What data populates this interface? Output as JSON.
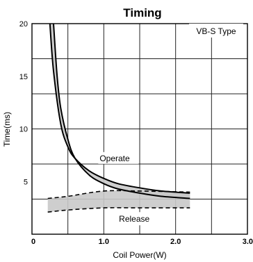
{
  "chart_data": {
    "type": "line",
    "title": "Timing",
    "xlabel": "Coil Power(W)",
    "ylabel": "Time(ms)",
    "xlim": [
      0,
      3.0
    ],
    "ylim": [
      0,
      20
    ],
    "x_ticks": [
      "0",
      "1.0",
      "2.0",
      "3.0"
    ],
    "y_ticks": [
      "20",
      "15",
      "10",
      "5"
    ],
    "grid": true,
    "type_label": "VB-S Type",
    "series": [
      {
        "name": "Operate",
        "band": true,
        "upper": [
          [
            0.25,
            20
          ],
          [
            0.3,
            15.5
          ],
          [
            0.4,
            10.5
          ],
          [
            0.5,
            8.3
          ],
          [
            0.6,
            7.2
          ],
          [
            0.8,
            6.0
          ],
          [
            1.0,
            5.3
          ],
          [
            1.2,
            4.8
          ],
          [
            1.5,
            4.4
          ],
          [
            1.8,
            4.1
          ],
          [
            2.2,
            3.9
          ]
        ],
        "lower": [
          [
            0.3,
            20
          ],
          [
            0.35,
            15
          ],
          [
            0.4,
            12
          ],
          [
            0.5,
            9.0
          ],
          [
            0.6,
            7.2
          ],
          [
            0.8,
            5.6
          ],
          [
            1.0,
            4.8
          ],
          [
            1.2,
            4.3
          ],
          [
            1.5,
            3.9
          ],
          [
            1.8,
            3.6
          ],
          [
            2.2,
            3.4
          ]
        ]
      },
      {
        "name": "Release",
        "band": true,
        "upper": [
          [
            0.22,
            3.4
          ],
          [
            0.5,
            3.6
          ],
          [
            1.0,
            4.1
          ],
          [
            1.5,
            4.1
          ],
          [
            2.2,
            4.0
          ]
        ],
        "lower": [
          [
            0.22,
            2.1
          ],
          [
            0.5,
            2.3
          ],
          [
            1.0,
            2.5
          ],
          [
            1.5,
            2.5
          ],
          [
            2.2,
            2.5
          ]
        ]
      }
    ]
  }
}
